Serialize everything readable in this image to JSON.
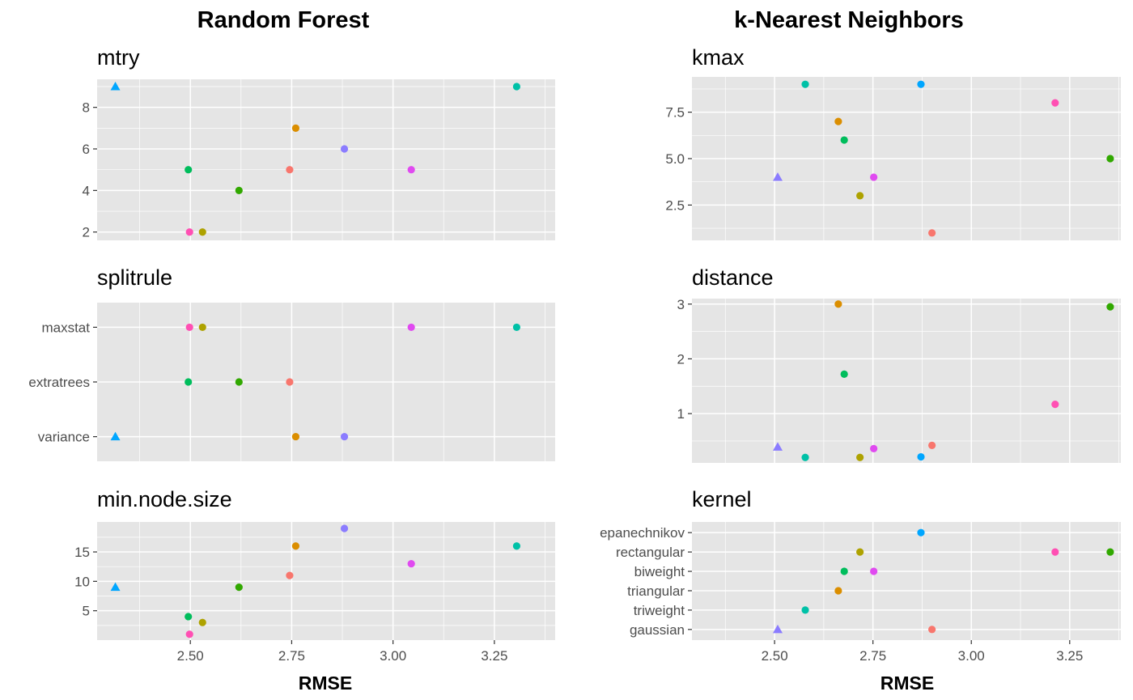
{
  "columns": [
    {
      "title": "Random Forest",
      "xlabel": "RMSE"
    },
    {
      "title": "k-Nearest Neighbors",
      "xlabel": "RMSE"
    }
  ],
  "colors": {
    "panel_bg": "#e5e5e5",
    "grid": "#ffffff",
    "point_palette": [
      "#f8766d",
      "#db8e00",
      "#aea200",
      "#64b200",
      "#00bd5c",
      "#00c1a7",
      "#00badf",
      "#00a6ff",
      "#b385ff",
      "#ef67eb",
      "#ff63b6"
    ]
  },
  "chart_data": [
    {
      "type": "scatter",
      "title": "mtry",
      "xlim": [
        2.27,
        3.4
      ],
      "ylim": [
        1.6,
        9.35
      ],
      "x_ticks": [
        2.5,
        2.75,
        3.0,
        3.25
      ],
      "x_tick_labels": [
        "2.50",
        "2.75",
        "3.00",
        "3.25"
      ],
      "y_ticks": [
        2,
        4,
        6,
        8
      ],
      "y_tick_labels": [
        "2",
        "4",
        "6",
        "8"
      ],
      "show_x_axis": false,
      "points": [
        {
          "x": 2.315,
          "y": 9,
          "color": "#00a6ff",
          "shape": "triangle"
        },
        {
          "x": 3.305,
          "y": 9,
          "color": "#00c1a7",
          "shape": "circle"
        },
        {
          "x": 2.76,
          "y": 7,
          "color": "#db8e00",
          "shape": "circle"
        },
        {
          "x": 2.88,
          "y": 6,
          "color": "#8b7cff",
          "shape": "circle"
        },
        {
          "x": 2.495,
          "y": 5,
          "color": "#00bd5c",
          "shape": "circle"
        },
        {
          "x": 2.745,
          "y": 5,
          "color": "#f8766d",
          "shape": "circle"
        },
        {
          "x": 3.045,
          "y": 5,
          "color": "#e04af0",
          "shape": "circle"
        },
        {
          "x": 2.62,
          "y": 4,
          "color": "#31a800",
          "shape": "circle"
        },
        {
          "x": 2.498,
          "y": 2,
          "color": "#ff4fb3",
          "shape": "circle"
        },
        {
          "x": 2.53,
          "y": 2,
          "color": "#aea200",
          "shape": "circle"
        }
      ]
    },
    {
      "type": "scatter",
      "title": "splitrule",
      "xlim": [
        2.27,
        3.4
      ],
      "ylim": [
        0.55,
        3.45
      ],
      "x_ticks": [
        2.5,
        2.75,
        3.0,
        3.25
      ],
      "x_tick_labels": [
        "2.50",
        "2.75",
        "3.00",
        "3.25"
      ],
      "y_ticks": [
        1,
        2,
        3
      ],
      "y_tick_labels": [
        "variance",
        "extratrees",
        "maxstat"
      ],
      "show_x_axis": false,
      "points": [
        {
          "x": 2.498,
          "y": 3,
          "color": "#ff4fb3",
          "shape": "circle"
        },
        {
          "x": 2.53,
          "y": 3,
          "color": "#aea200",
          "shape": "circle"
        },
        {
          "x": 3.045,
          "y": 3,
          "color": "#e04af0",
          "shape": "circle"
        },
        {
          "x": 3.305,
          "y": 3,
          "color": "#00c1a7",
          "shape": "circle"
        },
        {
          "x": 2.495,
          "y": 2,
          "color": "#00bd5c",
          "shape": "circle"
        },
        {
          "x": 2.62,
          "y": 2,
          "color": "#31a800",
          "shape": "circle"
        },
        {
          "x": 2.745,
          "y": 2,
          "color": "#f8766d",
          "shape": "circle"
        },
        {
          "x": 2.315,
          "y": 1,
          "color": "#00a6ff",
          "shape": "triangle"
        },
        {
          "x": 2.76,
          "y": 1,
          "color": "#db8e00",
          "shape": "circle"
        },
        {
          "x": 2.88,
          "y": 1,
          "color": "#8b7cff",
          "shape": "circle"
        }
      ]
    },
    {
      "type": "scatter",
      "title": "min.node.size",
      "xlim": [
        2.27,
        3.4
      ],
      "ylim": [
        0.0,
        20.1
      ],
      "x_ticks": [
        2.5,
        2.75,
        3.0,
        3.25
      ],
      "x_tick_labels": [
        "2.50",
        "2.75",
        "3.00",
        "3.25"
      ],
      "y_ticks": [
        5,
        10,
        15
      ],
      "y_tick_labels": [
        "5",
        "10",
        "15"
      ],
      "show_x_axis": true,
      "points": [
        {
          "x": 2.88,
          "y": 19,
          "color": "#8b7cff",
          "shape": "circle"
        },
        {
          "x": 2.76,
          "y": 16,
          "color": "#db8e00",
          "shape": "circle"
        },
        {
          "x": 3.305,
          "y": 16,
          "color": "#00c1a7",
          "shape": "circle"
        },
        {
          "x": 3.045,
          "y": 13,
          "color": "#e04af0",
          "shape": "circle"
        },
        {
          "x": 2.745,
          "y": 11,
          "color": "#f8766d",
          "shape": "circle"
        },
        {
          "x": 2.315,
          "y": 9,
          "color": "#00a6ff",
          "shape": "triangle"
        },
        {
          "x": 2.62,
          "y": 9,
          "color": "#31a800",
          "shape": "circle"
        },
        {
          "x": 2.495,
          "y": 4,
          "color": "#00bd5c",
          "shape": "circle"
        },
        {
          "x": 2.53,
          "y": 3,
          "color": "#aea200",
          "shape": "circle"
        },
        {
          "x": 2.498,
          "y": 1,
          "color": "#ff4fb3",
          "shape": "circle"
        }
      ]
    },
    {
      "type": "scatter",
      "title": "kmax",
      "xlim": [
        2.29,
        3.38
      ],
      "ylim": [
        0.6,
        9.4
      ],
      "x_ticks": [
        2.5,
        2.75,
        3.0,
        3.25
      ],
      "x_tick_labels": [
        "2.50",
        "2.75",
        "3.00",
        "3.25"
      ],
      "y_ticks": [
        2.5,
        5.0,
        7.5
      ],
      "y_tick_labels": [
        "2.5",
        "5.0",
        "7.5"
      ],
      "show_x_axis": false,
      "points": [
        {
          "x": 2.578,
          "y": 9,
          "color": "#00c1a7",
          "shape": "circle"
        },
        {
          "x": 2.872,
          "y": 9,
          "color": "#00a6ff",
          "shape": "circle"
        },
        {
          "x": 3.213,
          "y": 8,
          "color": "#ff4fb3",
          "shape": "circle"
        },
        {
          "x": 2.662,
          "y": 7,
          "color": "#db8e00",
          "shape": "circle"
        },
        {
          "x": 2.677,
          "y": 6,
          "color": "#00bd5c",
          "shape": "circle"
        },
        {
          "x": 3.353,
          "y": 5,
          "color": "#31a800",
          "shape": "circle"
        },
        {
          "x": 2.508,
          "y": 4,
          "color": "#8b7cff",
          "shape": "triangle"
        },
        {
          "x": 2.752,
          "y": 4,
          "color": "#e04af0",
          "shape": "circle"
        },
        {
          "x": 2.717,
          "y": 3,
          "color": "#aea200",
          "shape": "circle"
        },
        {
          "x": 2.9,
          "y": 1,
          "color": "#f8766d",
          "shape": "circle"
        }
      ]
    },
    {
      "type": "scatter",
      "title": "distance",
      "xlim": [
        2.29,
        3.38
      ],
      "ylim": [
        0.1,
        3.1
      ],
      "x_ticks": [
        2.5,
        2.75,
        3.0,
        3.25
      ],
      "x_tick_labels": [
        "2.50",
        "2.75",
        "3.00",
        "3.25"
      ],
      "y_ticks": [
        1,
        2,
        3
      ],
      "y_tick_labels": [
        "1",
        "2",
        "3"
      ],
      "show_x_axis": false,
      "points": [
        {
          "x": 2.662,
          "y": 3.0,
          "color": "#db8e00",
          "shape": "circle"
        },
        {
          "x": 3.353,
          "y": 2.95,
          "color": "#31a800",
          "shape": "circle"
        },
        {
          "x": 2.677,
          "y": 1.72,
          "color": "#00bd5c",
          "shape": "circle"
        },
        {
          "x": 3.213,
          "y": 1.17,
          "color": "#ff4fb3",
          "shape": "circle"
        },
        {
          "x": 2.9,
          "y": 0.42,
          "color": "#f8766d",
          "shape": "circle"
        },
        {
          "x": 2.508,
          "y": 0.39,
          "color": "#8b7cff",
          "shape": "triangle"
        },
        {
          "x": 2.752,
          "y": 0.36,
          "color": "#e04af0",
          "shape": "circle"
        },
        {
          "x": 2.578,
          "y": 0.2,
          "color": "#00c1a7",
          "shape": "circle"
        },
        {
          "x": 2.717,
          "y": 0.2,
          "color": "#aea200",
          "shape": "circle"
        },
        {
          "x": 2.872,
          "y": 0.21,
          "color": "#00a6ff",
          "shape": "circle"
        }
      ]
    },
    {
      "type": "scatter",
      "title": "kernel",
      "xlim": [
        2.29,
        3.38
      ],
      "ylim": [
        0.45,
        6.55
      ],
      "x_ticks": [
        2.5,
        2.75,
        3.0,
        3.25
      ],
      "x_tick_labels": [
        "2.50",
        "2.75",
        "3.00",
        "3.25"
      ],
      "y_ticks": [
        1,
        2,
        3,
        4,
        5,
        6
      ],
      "y_tick_labels": [
        "gaussian",
        "triweight",
        "triangular",
        "biweight",
        "rectangular",
        "epanechnikov"
      ],
      "show_x_axis": true,
      "points": [
        {
          "x": 2.872,
          "y": 6,
          "color": "#00a6ff",
          "shape": "circle"
        },
        {
          "x": 2.717,
          "y": 5,
          "color": "#aea200",
          "shape": "circle"
        },
        {
          "x": 3.213,
          "y": 5,
          "color": "#ff4fb3",
          "shape": "circle"
        },
        {
          "x": 3.353,
          "y": 5,
          "color": "#31a800",
          "shape": "circle"
        },
        {
          "x": 2.677,
          "y": 4,
          "color": "#00bd5c",
          "shape": "circle"
        },
        {
          "x": 2.752,
          "y": 4,
          "color": "#e04af0",
          "shape": "circle"
        },
        {
          "x": 2.662,
          "y": 3,
          "color": "#db8e00",
          "shape": "circle"
        },
        {
          "x": 2.578,
          "y": 2,
          "color": "#00c1a7",
          "shape": "circle"
        },
        {
          "x": 2.508,
          "y": 1,
          "color": "#8b7cff",
          "shape": "triangle"
        },
        {
          "x": 2.9,
          "y": 1,
          "color": "#f8766d",
          "shape": "circle"
        }
      ]
    }
  ]
}
